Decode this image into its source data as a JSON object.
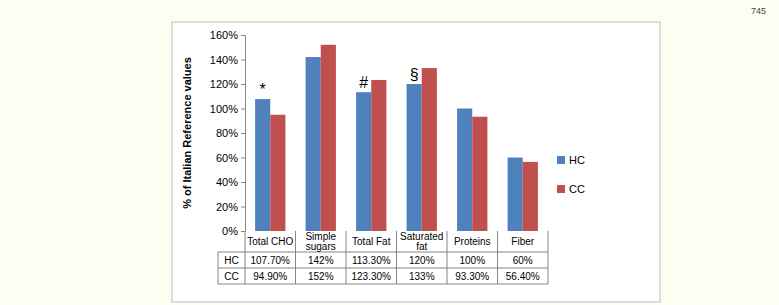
{
  "page": {
    "number": "745"
  },
  "chart_data": {
    "type": "bar",
    "y_label": "% of Italian Reference values",
    "categories": [
      "Total CHO",
      "Simple sugars",
      "Total Fat",
      "Saturated fat",
      "Proteins",
      "Fiber"
    ],
    "series": [
      {
        "name": "HC",
        "color": "#4f81bd",
        "values": [
          107.7,
          142,
          113.3,
          120,
          100,
          60
        ],
        "value_labels": [
          "107.70%",
          "142%",
          "113.30%",
          "120%",
          "100%",
          "60%"
        ]
      },
      {
        "name": "CC",
        "color": "#c0504d",
        "values": [
          94.9,
          152,
          123.3,
          133,
          93.3,
          56.4
        ],
        "value_labels": [
          "94.90%",
          "152%",
          "123.30%",
          "133%",
          "93.30%",
          "56.40%"
        ]
      }
    ],
    "annotations": [
      {
        "text": "*",
        "category": 0,
        "series": 0
      },
      {
        "text": "#",
        "category": 2,
        "series": 0
      },
      {
        "text": "§",
        "category": 3,
        "series": 0
      }
    ],
    "ylim": [
      0,
      160
    ],
    "yticks": [
      {
        "value": 0,
        "label": "0%"
      },
      {
        "value": 20,
        "label": "20%"
      },
      {
        "value": 40,
        "label": "40%"
      },
      {
        "value": 60,
        "label": "60%"
      },
      {
        "value": 80,
        "label": "80%"
      },
      {
        "value": 100,
        "label": "100%"
      },
      {
        "value": 120,
        "label": "120%"
      },
      {
        "value": 140,
        "label": "140%"
      },
      {
        "value": 160,
        "label": "160%"
      }
    ],
    "grid": false,
    "legend": "right"
  }
}
